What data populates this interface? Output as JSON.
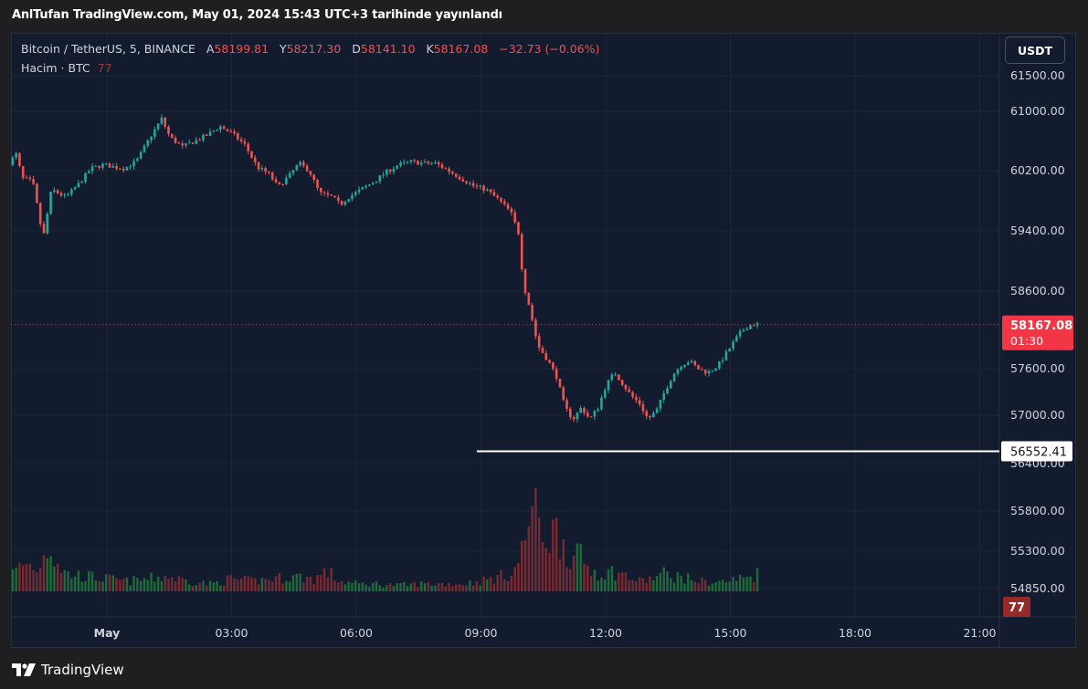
{
  "header": {
    "caption": "AnlTufan TradingView.com, May 01, 2024 15:43 UTC+3 tarihinde yayınlandı"
  },
  "legend": {
    "symbol": "Bitcoin / TetherUS, 5, BINANCE",
    "open_label": "A",
    "open": "58199.81",
    "high_label": "Y",
    "high": "58217.30",
    "low_label": "D",
    "low": "58141.10",
    "close_label": "K",
    "close": "58167.08",
    "change": "−32.73 (−0.06%)",
    "volume_label": "Hacim · BTC",
    "volume_value": "77"
  },
  "currency_button": "USDT",
  "footer": {
    "brand": "TradingView"
  },
  "colors": {
    "up": "#26a69a",
    "down": "#ef5350",
    "vol_up": "#1f6b3a",
    "vol_down": "#7a2a30",
    "price_label": "#f23645",
    "volume_label": "#942a2a",
    "hline": "#ffffff"
  },
  "chart_data": {
    "type": "candlestick",
    "bar_interval_minutes": 5,
    "y_ticks": [
      "61500.00",
      "61000.00",
      "60200.00",
      "59400.00",
      "58600.00",
      "57600.00",
      "57000.00",
      "56400.00",
      "55800.00",
      "55300.00",
      "54850.00"
    ],
    "y_tick_values": [
      61500,
      61000,
      60200,
      59400,
      58600,
      57600,
      57000,
      56400,
      55800,
      55300,
      54850
    ],
    "x_ticks": [
      "May",
      "03:00",
      "06:00",
      "09:00",
      "12:00",
      "15:00",
      "18:00",
      "21:00"
    ],
    "x_tick_hours": [
      0,
      3,
      6,
      9,
      12,
      15,
      18,
      21
    ],
    "current_price": {
      "value": "58167.08",
      "countdown": "01:30"
    },
    "horizontal_line": {
      "value": "56552.41",
      "from_hour": 8.9
    },
    "volume_last": "77",
    "price_path": [
      [
        -2.35,
        60250
      ],
      [
        -2.1,
        60420
      ],
      [
        -1.95,
        60100
      ],
      [
        -1.7,
        60050
      ],
      [
        -1.45,
        59300
      ],
      [
        -1.25,
        59950
      ],
      [
        -0.9,
        59850
      ],
      [
        -0.6,
        60020
      ],
      [
        -0.3,
        60230
      ],
      [
        0,
        60280
      ],
      [
        0.25,
        60250
      ],
      [
        0.5,
        60230
      ],
      [
        0.8,
        60330
      ],
      [
        1.1,
        60630
      ],
      [
        1.4,
        60900
      ],
      [
        1.6,
        60650
      ],
      [
        1.9,
        60520
      ],
      [
        2.2,
        60600
      ],
      [
        2.5,
        60680
      ],
      [
        2.8,
        60800
      ],
      [
        3.1,
        60700
      ],
      [
        3.4,
        60550
      ],
      [
        3.7,
        60250
      ],
      [
        4.0,
        60150
      ],
      [
        4.2,
        59980
      ],
      [
        4.5,
        60150
      ],
      [
        4.7,
        60300
      ],
      [
        4.95,
        60200
      ],
      [
        5.2,
        59900
      ],
      [
        5.5,
        59850
      ],
      [
        5.7,
        59750
      ],
      [
        5.9,
        59850
      ],
      [
        6.2,
        59950
      ],
      [
        6.5,
        60050
      ],
      [
        6.8,
        60180
      ],
      [
        7.1,
        60280
      ],
      [
        7.4,
        60320
      ],
      [
        7.7,
        60300
      ],
      [
        8.0,
        60300
      ],
      [
        8.3,
        60200
      ],
      [
        8.6,
        60100
      ],
      [
        8.9,
        60000
      ],
      [
        9.2,
        59950
      ],
      [
        9.5,
        59820
      ],
      [
        9.8,
        59650
      ],
      [
        10.0,
        59350
      ],
      [
        10.1,
        58700
      ],
      [
        10.25,
        58400
      ],
      [
        10.45,
        57900
      ],
      [
        10.7,
        57700
      ],
      [
        10.9,
        57500
      ],
      [
        11.1,
        57100
      ],
      [
        11.3,
        56950
      ],
      [
        11.5,
        57100
      ],
      [
        11.7,
        56950
      ],
      [
        11.9,
        57100
      ],
      [
        12.1,
        57400
      ],
      [
        12.3,
        57550
      ],
      [
        12.5,
        57400
      ],
      [
        12.7,
        57250
      ],
      [
        12.9,
        57150
      ],
      [
        13.1,
        56950
      ],
      [
        13.3,
        57050
      ],
      [
        13.5,
        57300
      ],
      [
        13.7,
        57520
      ],
      [
        13.9,
        57650
      ],
      [
        14.1,
        57700
      ],
      [
        14.3,
        57600
      ],
      [
        14.55,
        57550
      ],
      [
        14.8,
        57650
      ],
      [
        15.05,
        57850
      ],
      [
        15.3,
        58050
      ],
      [
        15.5,
        58150
      ],
      [
        15.65,
        58170
      ]
    ],
    "volume_path": [
      [
        -2.35,
        30
      ],
      [
        -2.0,
        55
      ],
      [
        -1.6,
        45
      ],
      [
        -1.5,
        100
      ],
      [
        -1.3,
        75
      ],
      [
        -1.0,
        35
      ],
      [
        -0.5,
        30
      ],
      [
        0,
        25
      ],
      [
        0.5,
        20
      ],
      [
        1.0,
        25
      ],
      [
        1.4,
        30
      ],
      [
        2.0,
        20
      ],
      [
        2.5,
        15
      ],
      [
        3.0,
        25
      ],
      [
        3.5,
        20
      ],
      [
        4.0,
        25
      ],
      [
        4.5,
        30
      ],
      [
        5.0,
        25
      ],
      [
        5.3,
        40
      ],
      [
        5.6,
        20
      ],
      [
        6.0,
        15
      ],
      [
        6.5,
        15
      ],
      [
        7.0,
        12
      ],
      [
        7.5,
        15
      ],
      [
        8.0,
        15
      ],
      [
        8.5,
        15
      ],
      [
        9.0,
        20
      ],
      [
        9.5,
        30
      ],
      [
        9.8,
        40
      ],
      [
        10.0,
        80
      ],
      [
        10.2,
        170
      ],
      [
        10.4,
        130
      ],
      [
        10.6,
        110
      ],
      [
        10.8,
        120
      ],
      [
        11.0,
        100
      ],
      [
        11.2,
        60
      ],
      [
        11.4,
        70
      ],
      [
        11.6,
        45
      ],
      [
        11.8,
        40
      ],
      [
        12.0,
        35
      ],
      [
        12.2,
        40
      ],
      [
        12.5,
        30
      ],
      [
        12.8,
        20
      ],
      [
        13.1,
        25
      ],
      [
        13.4,
        35
      ],
      [
        13.7,
        30
      ],
      [
        14.0,
        25
      ],
      [
        14.3,
        20
      ],
      [
        14.6,
        18
      ],
      [
        14.9,
        20
      ],
      [
        15.2,
        25
      ],
      [
        15.5,
        30
      ],
      [
        15.65,
        35
      ]
    ]
  }
}
